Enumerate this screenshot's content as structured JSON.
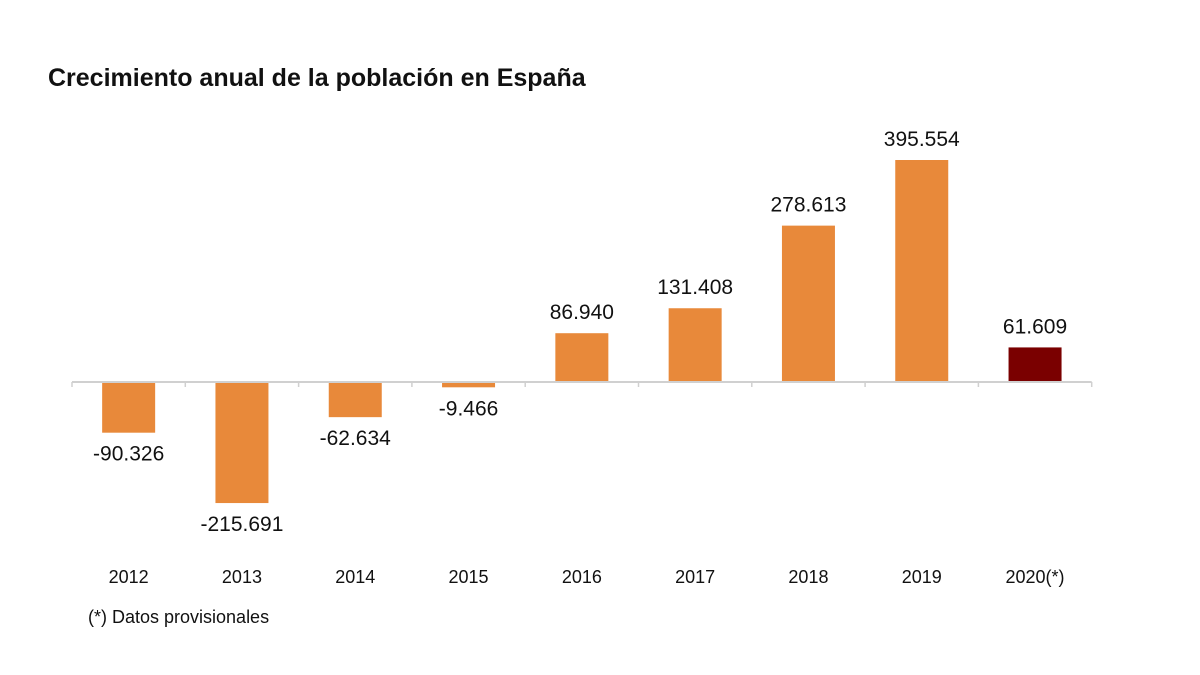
{
  "chart_data": {
    "type": "bar",
    "title": "Crecimiento anual de la población en España",
    "categories": [
      "2012",
      "2013",
      "2014",
      "2015",
      "2016",
      "2017",
      "2018",
      "2019",
      "2020(*)"
    ],
    "values": [
      -90326,
      -215691,
      -62634,
      -9466,
      86940,
      131408,
      278613,
      395554,
      61609
    ],
    "data_labels": [
      "-90.326",
      "-215.691",
      "-62.634",
      "-9.466",
      "86.940",
      "131.408",
      "278.613",
      "395.554",
      "61.609"
    ],
    "colors": [
      "#E8893A",
      "#E8893A",
      "#E8893A",
      "#E8893A",
      "#E8893A",
      "#E8893A",
      "#E8893A",
      "#E8893A",
      "#7A0000"
    ],
    "axis_color": "#D0D0D0",
    "grid": false,
    "legend": "none",
    "footnote": "(*) Datos provisionales"
  }
}
